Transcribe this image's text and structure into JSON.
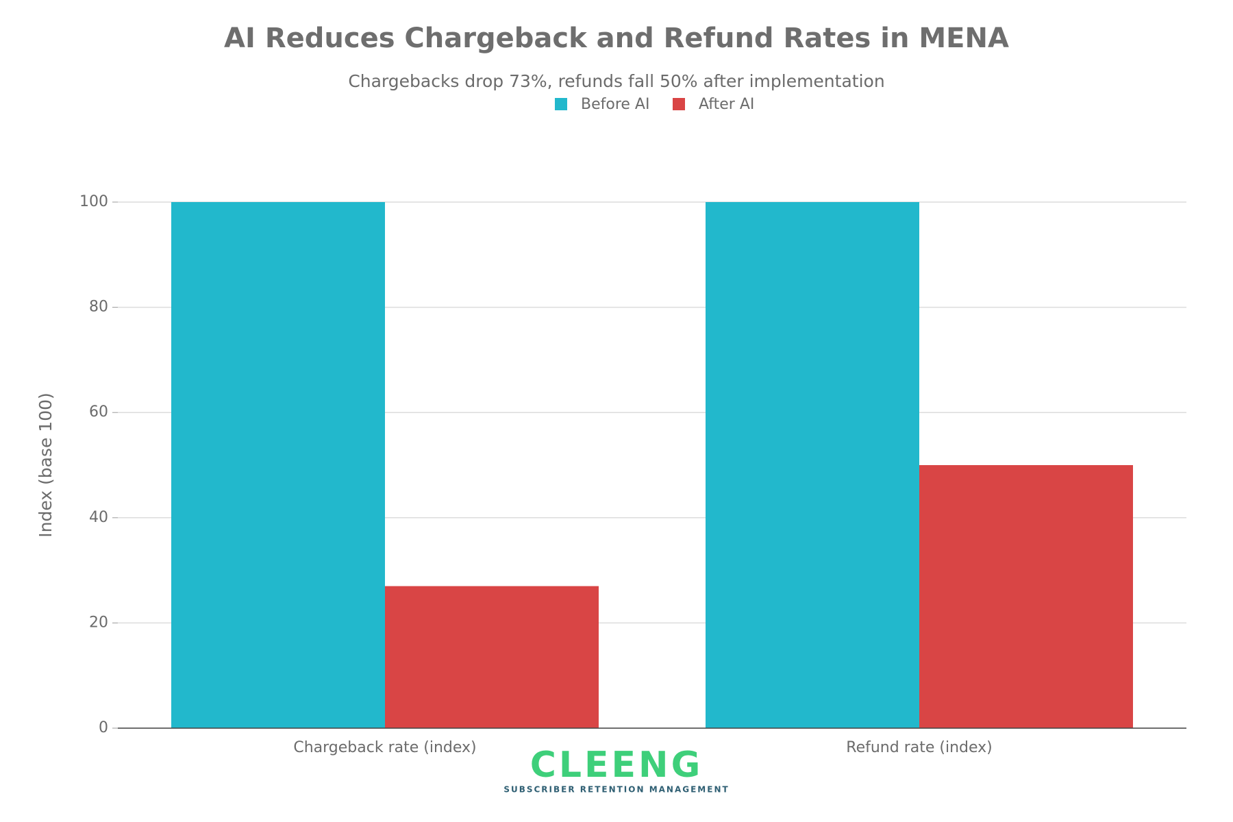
{
  "chart_data": {
    "type": "bar",
    "title": "AI Reduces Chargeback and Refund Rates in MENA",
    "subtitle": "Chargebacks drop 73%, refunds fall 50% after implementation",
    "y_label": "Index (base 100)",
    "categories": [
      "Chargeback rate (index)",
      "Refund rate (index)"
    ],
    "series": [
      {
        "name": "Before AI",
        "color": "#22b8cc",
        "values": [
          100,
          100
        ]
      },
      {
        "name": "After AI",
        "color": "#d94545",
        "values": [
          27,
          50
        ]
      }
    ],
    "ylim": [
      0,
      100
    ],
    "yticks": [
      0,
      20,
      40,
      60,
      80,
      100
    ],
    "grid": true,
    "legend": "top",
    "annotations": [
      "CLEENG",
      "SUBSCRIBER RETENTION MANAGEMENT"
    ]
  }
}
